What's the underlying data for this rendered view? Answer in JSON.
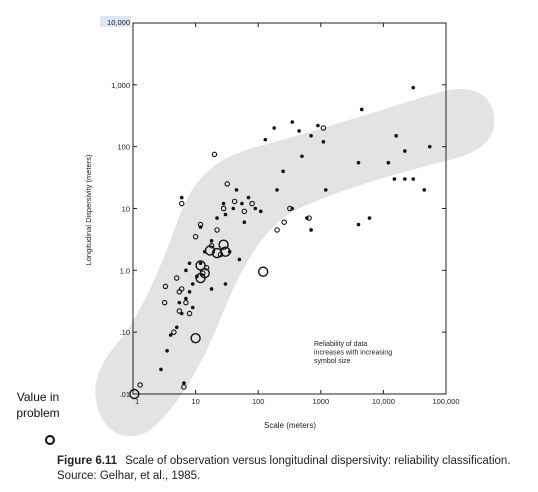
{
  "chart_data": {
    "type": "scatter",
    "x_scale": "log",
    "y_scale": "log",
    "xlim": [
      1,
      100000
    ],
    "ylim": [
      0.01,
      10000
    ],
    "xlabel": "Scale (meters)",
    "ylabel": "Longitudinal Dispersivity (meters)",
    "x_ticks": [
      1,
      10,
      100,
      1000,
      10000,
      100000
    ],
    "x_tick_labels": [
      "1",
      "10",
      "100",
      "1000",
      "10,000",
      "100,000"
    ],
    "y_ticks": [
      0.01,
      0.1,
      1,
      10,
      100,
      1000,
      10000
    ],
    "y_tick_labels": [
      ".01",
      ".10",
      "1.0",
      "10",
      "100",
      "1,000",
      "10,000"
    ],
    "annotation": "Reliability of data increases with increasing symbol size",
    "grid": false,
    "band_color": "#e3e3e3",
    "series": [
      {
        "marker": "filled-dot",
        "points": [
          [
            6.5,
            0.015
          ],
          [
            2.8,
            0.025
          ],
          [
            3.5,
            0.05
          ],
          [
            4.0,
            0.09
          ],
          [
            5.0,
            0.12
          ],
          [
            6.0,
            0.2
          ],
          [
            5.5,
            0.3
          ],
          [
            7.0,
            0.35
          ],
          [
            8.0,
            0.45
          ],
          [
            9.0,
            0.6
          ],
          [
            10.5,
            0.8
          ],
          [
            12.0,
            1.3
          ],
          [
            14.0,
            2.0
          ],
          [
            18.0,
            3.0
          ],
          [
            12.0,
            5.0
          ],
          [
            22.0,
            7.0
          ],
          [
            30.0,
            8.0
          ],
          [
            40.0,
            10.0
          ],
          [
            55.0,
            12.0
          ],
          [
            70.0,
            15.0
          ],
          [
            28.0,
            12.0
          ],
          [
            45.0,
            20.0
          ],
          [
            35.0,
            2.0
          ],
          [
            50.0,
            1.5
          ],
          [
            8.0,
            1.3
          ],
          [
            30.0,
            0.6
          ],
          [
            18.0,
            0.5
          ],
          [
            6.0,
            15.0
          ],
          [
            60.0,
            6.0
          ],
          [
            90.0,
            10.0
          ],
          [
            130.0,
            130.0
          ],
          [
            180.0,
            200.0
          ],
          [
            350.0,
            250.0
          ],
          [
            450.0,
            180.0
          ],
          [
            700.0,
            150.0
          ],
          [
            900.0,
            220.0
          ],
          [
            600.0,
            7.0
          ],
          [
            700.0,
            4.5
          ],
          [
            1200.0,
            20.0
          ],
          [
            350.0,
            10.0
          ],
          [
            250.0,
            40.0
          ],
          [
            500.0,
            70.0
          ],
          [
            1100.0,
            120.0
          ],
          [
            4000.0,
            5.5
          ],
          [
            6000.0,
            7.0
          ],
          [
            4000.0,
            55.0
          ],
          [
            12000.0,
            55.0
          ],
          [
            15000.0,
            30.0
          ],
          [
            22000.0,
            30.0
          ],
          [
            30000.0,
            30.0
          ],
          [
            22000.0,
            85.0
          ],
          [
            30000.0,
            900.0
          ],
          [
            45000.0,
            20.0
          ],
          [
            55000.0,
            100.0
          ],
          [
            4500.0,
            400.0
          ],
          [
            16000.0,
            150.0
          ],
          [
            200.0,
            20.0
          ],
          [
            110.0,
            9.0
          ],
          [
            7.0,
            1.0
          ],
          [
            9.0,
            0.25
          ]
        ]
      },
      {
        "marker": "open-small",
        "points": [
          [
            1.3,
            0.014
          ],
          [
            3.2,
            0.3
          ],
          [
            3.3,
            0.55
          ],
          [
            5.5,
            0.45
          ],
          [
            5.0,
            0.75
          ],
          [
            6.0,
            0.5
          ],
          [
            5.5,
            0.22
          ],
          [
            7.0,
            0.3
          ],
          [
            8.0,
            0.2
          ],
          [
            4.5,
            0.1
          ],
          [
            6.5,
            0.013
          ],
          [
            6.0,
            12.0
          ],
          [
            20.0,
            75.0
          ],
          [
            10.0,
            3.5
          ],
          [
            12.0,
            5.5
          ],
          [
            18.0,
            2.5
          ],
          [
            22.0,
            4.5
          ],
          [
            28.0,
            10.0
          ],
          [
            32.0,
            25.0
          ],
          [
            42.0,
            13.0
          ],
          [
            60.0,
            9.0
          ],
          [
            80.0,
            12.0
          ],
          [
            260.0,
            6.0
          ],
          [
            650.0,
            7.0
          ],
          [
            320.0,
            10.0
          ],
          [
            1100.0,
            200.0
          ],
          [
            200.0,
            4.5
          ],
          [
            15.0,
            1.1
          ],
          [
            25.0,
            1.8
          ],
          [
            13.0,
            0.9
          ]
        ]
      },
      {
        "marker": "open-large",
        "points": [
          [
            1.05,
            0.01
          ],
          [
            12.0,
            1.2
          ],
          [
            12.0,
            0.75
          ],
          [
            17.0,
            2.1
          ],
          [
            22.0,
            1.9
          ],
          [
            28.0,
            2.6
          ],
          [
            30.0,
            2.0
          ],
          [
            14.0,
            0.9
          ],
          [
            10.0,
            0.08
          ],
          [
            120.0,
            0.95
          ]
        ]
      }
    ]
  },
  "caption": {
    "figure_label": "Figure 6.11",
    "text": "Scale of observation versus longitudinal dispersivity: reliability classification. Source: Gelhar, et al., 1985."
  },
  "value_in_problem": {
    "label": "Value in problem"
  }
}
